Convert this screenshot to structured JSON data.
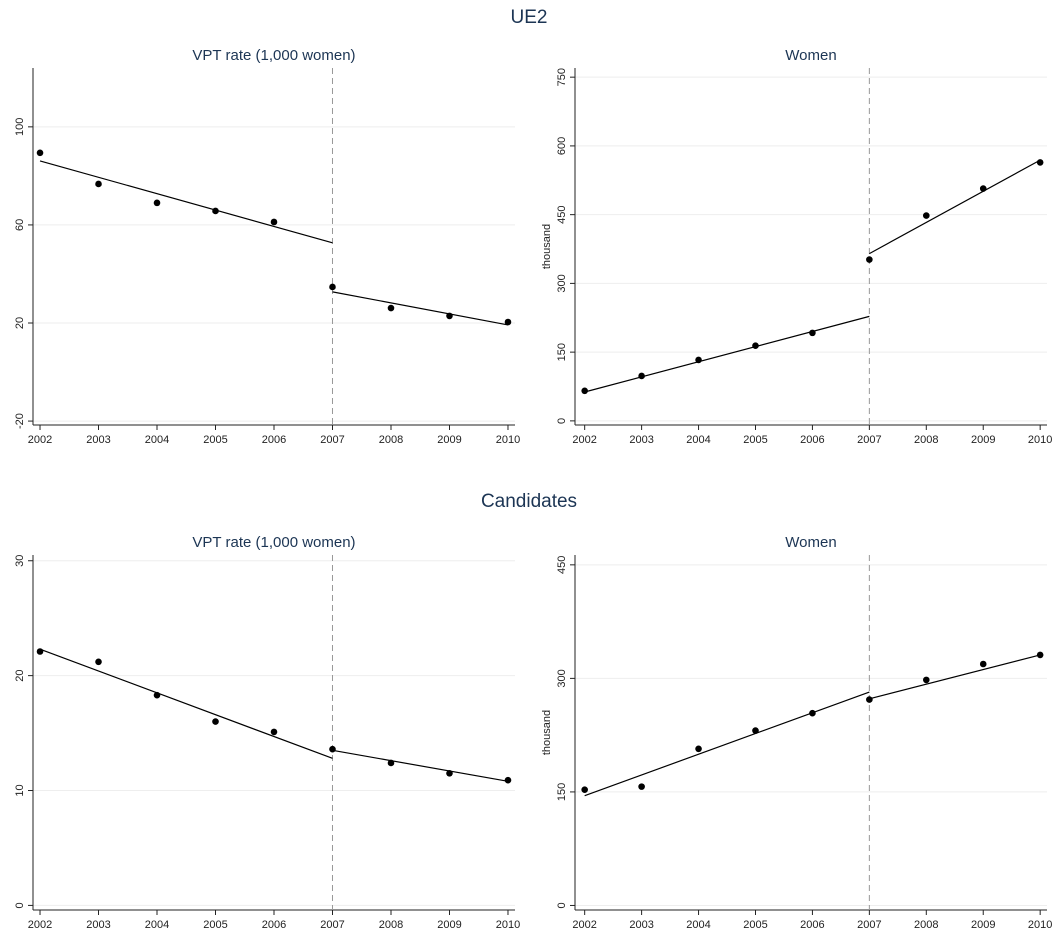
{
  "section_titles": [
    "UE2",
    "Candidates"
  ],
  "chart_data": [
    {
      "type": "scatter",
      "title": "VPT rate (1,000 women)",
      "x": [
        2002,
        2003,
        2004,
        2005,
        2006,
        2007,
        2008,
        2009,
        2010
      ],
      "values": [
        89.4,
        76.7,
        69,
        65.7,
        61.2,
        34.7,
        26.1,
        22.9,
        20.4
      ],
      "fit": [
        {
          "x": [
            2002,
            2007
          ],
          "values": [
            86.1,
            52.7
          ]
        },
        {
          "x": [
            2007,
            2010
          ],
          "values": [
            32.7,
            19.2
          ]
        }
      ],
      "vline": 2007,
      "color": "#000000",
      "fit_color": "#000000",
      "vline_color": "#999999",
      "xlim": [
        2001.88,
        2010.12
      ],
      "xticks": [
        2002,
        2003,
        2004,
        2005,
        2006,
        2007,
        2008,
        2009,
        2010
      ],
      "ylim": [
        -21.6,
        124
      ],
      "yticks": [
        -20,
        20,
        60,
        100
      ],
      "grid": true
    },
    {
      "type": "scatter",
      "title": "Women",
      "ylabel": "thousand",
      "x": [
        2002,
        2003,
        2004,
        2005,
        2006,
        2007,
        2008,
        2009,
        2010
      ],
      "values": [
        65.6,
        98,
        133,
        164,
        192,
        352,
        448,
        507,
        564
      ],
      "fit": [
        {
          "x": [
            2002,
            2007
          ],
          "values": [
            63,
            228
          ]
        },
        {
          "x": [
            2007,
            2010
          ],
          "values": [
            365,
            569
          ]
        }
      ],
      "vline": 2007,
      "color": "#000000",
      "fit_color": "#000000",
      "vline_color": "#999999",
      "xlim": [
        2001.83,
        2010.12
      ],
      "xticks": [
        2002,
        2003,
        2004,
        2005,
        2006,
        2007,
        2008,
        2009,
        2010
      ],
      "ylim": [
        -9,
        770
      ],
      "yticks": [
        0,
        150,
        300,
        450,
        600,
        750
      ],
      "grid": true
    },
    {
      "type": "scatter",
      "title": "VPT rate (1,000 women)",
      "x": [
        2002,
        2003,
        2004,
        2005,
        2006,
        2007,
        2008,
        2009,
        2010
      ],
      "values": [
        22.1,
        21.2,
        18.3,
        16.0,
        15.1,
        13.6,
        12.4,
        11.5,
        10.9
      ],
      "fit": [
        {
          "x": [
            2002,
            2007
          ],
          "values": [
            22.3,
            12.8
          ]
        },
        {
          "x": [
            2007,
            2010
          ],
          "values": [
            13.5,
            10.8
          ]
        }
      ],
      "vline": 2007,
      "color": "#000000",
      "fit_color": "#000000",
      "vline_color": "#999999",
      "xlim": [
        2001.88,
        2010.12
      ],
      "xticks": [
        2002,
        2003,
        2004,
        2005,
        2006,
        2007,
        2008,
        2009,
        2010
      ],
      "ylim": [
        -0.4,
        30.5
      ],
      "yticks": [
        0,
        10,
        20,
        30
      ],
      "grid": true
    },
    {
      "type": "scatter",
      "title": "Women",
      "ylabel": "thousand",
      "x": [
        2002,
        2003,
        2004,
        2005,
        2006,
        2007,
        2008,
        2009,
        2010
      ],
      "values": [
        153,
        157,
        207,
        231,
        254,
        272,
        298,
        319,
        331
      ],
      "fit": [
        {
          "x": [
            2002,
            2007
          ],
          "values": [
            145,
            282
          ]
        },
        {
          "x": [
            2007,
            2010
          ],
          "values": [
            273,
            331
          ]
        }
      ],
      "vline": 2007,
      "color": "#000000",
      "fit_color": "#000000",
      "vline_color": "#999999",
      "xlim": [
        2001.83,
        2010.12
      ],
      "xticks": [
        2002,
        2003,
        2004,
        2005,
        2006,
        2007,
        2008,
        2009,
        2010
      ],
      "ylim": [
        -6,
        463
      ],
      "yticks": [
        0,
        150,
        300,
        450
      ],
      "grid": true
    }
  ]
}
